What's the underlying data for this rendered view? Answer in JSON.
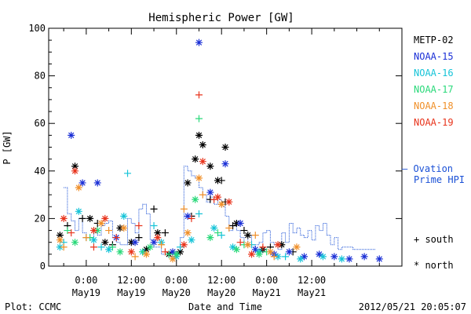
{
  "chart_data": {
    "type": "scatter",
    "title": "Hemispheric Power [GW]",
    "ylabel": "P [GW]",
    "xlabel": "Date and Time",
    "ylim": [
      0,
      100
    ],
    "y_ticks": [
      "0",
      "20",
      "40",
      "60",
      "80",
      "100"
    ],
    "x_range_hours": [
      -10,
      84
    ],
    "x_ticks": [
      {
        "hour": 0,
        "time": "0:00",
        "date": "May19"
      },
      {
        "hour": 12,
        "time": "12:00",
        "date": "May19"
      },
      {
        "hour": 24,
        "time": "0:00",
        "date": "May20"
      },
      {
        "hour": 36,
        "time": "12:00",
        "date": "May20"
      },
      {
        "hour": 48,
        "time": "0:00",
        "date": "May21"
      },
      {
        "hour": 60,
        "time": "12:00",
        "date": "May21"
      }
    ],
    "legend": {
      "satellites": [
        {
          "name": "METP-02",
          "color": "#000000"
        },
        {
          "name": "NOAA-15",
          "color": "#1a2fd6"
        },
        {
          "name": "NOAA-16",
          "color": "#17c4d8"
        },
        {
          "name": "NOAA-17",
          "color": "#2ad97a"
        },
        {
          "name": "NOAA-18",
          "color": "#f0902a"
        },
        {
          "name": "NOAA-19",
          "color": "#e8341c"
        }
      ],
      "ovation_label_1": "— Ovation",
      "ovation_label_2": "Prime HPI",
      "ovation_color": "#1a50d6",
      "south_label": "+ south",
      "north_label": "* north"
    },
    "ovation_hpi": {
      "x": [
        -6,
        -5,
        -4,
        -3,
        -2,
        -1,
        0,
        1,
        2,
        3,
        4,
        5,
        6,
        7,
        8,
        9,
        10,
        11,
        12,
        13,
        14,
        15,
        16,
        17,
        18,
        19,
        20,
        21,
        22,
        23,
        24,
        25,
        26,
        27,
        28,
        29,
        30,
        31,
        32,
        33,
        34,
        35,
        36,
        37,
        38,
        39,
        40,
        41,
        42,
        43,
        44,
        45,
        46,
        47,
        48,
        49,
        50,
        51,
        52,
        53,
        54,
        55,
        56,
        57,
        58,
        59,
        60,
        61,
        62,
        63,
        64,
        65,
        66,
        67,
        68,
        69,
        70,
        71,
        72,
        73,
        74,
        75,
        76
      ],
      "y": [
        33,
        22,
        19,
        15,
        20,
        14,
        12,
        12,
        14,
        13,
        17,
        18,
        19,
        12,
        10,
        9,
        9,
        20,
        18,
        14,
        24,
        26,
        22,
        11,
        8,
        8,
        5,
        5,
        4,
        4,
        6,
        12,
        42,
        40,
        38,
        37,
        33,
        30,
        27,
        29,
        26,
        28,
        25,
        21,
        15,
        18,
        15,
        12,
        9,
        13,
        8,
        9,
        10,
        14,
        15,
        10,
        9,
        7,
        14,
        10,
        18,
        14,
        16,
        13,
        12,
        15,
        11,
        17,
        15,
        18,
        13,
        9,
        12,
        7,
        8,
        8,
        8,
        7,
        7,
        7,
        7,
        7,
        7
      ]
    },
    "series": [
      {
        "name": "METP-02",
        "hemisphere": "south",
        "x": [
          -5,
          -1,
          3,
          7,
          14,
          18,
          21,
          28,
          33,
          36,
          37,
          39,
          42,
          49,
          55
        ],
        "y": [
          17,
          20,
          18,
          9,
          12,
          24,
          14,
          21,
          28,
          36,
          27,
          17,
          15,
          8,
          6
        ]
      },
      {
        "name": "METP-02",
        "hemisphere": "north",
        "x": [
          -7,
          -3,
          1,
          5,
          9,
          12,
          16,
          19,
          22,
          25,
          27,
          29,
          30,
          31,
          33,
          35,
          37,
          40,
          43,
          47,
          52
        ],
        "y": [
          13,
          42,
          20,
          10,
          16,
          10,
          7,
          14,
          5,
          6,
          35,
          45,
          55,
          51,
          42,
          36,
          50,
          18,
          13,
          7,
          9
        ]
      },
      {
        "name": "NOAA-15",
        "hemisphere": "north",
        "x": [
          -4,
          -1,
          3,
          8,
          13,
          18,
          23,
          27,
          30,
          33,
          37,
          41,
          45,
          50,
          54,
          58,
          62,
          66,
          70,
          74,
          78
        ],
        "y": [
          55,
          35,
          35,
          12,
          10,
          10,
          6,
          21,
          94,
          31,
          43,
          18,
          7,
          5,
          6,
          4,
          5,
          4,
          3,
          4,
          3
        ]
      },
      {
        "name": "NOAA-16",
        "hemisphere": "south",
        "x": [
          -6,
          0,
          4,
          11,
          18,
          25,
          30,
          36,
          44,
          53
        ],
        "y": [
          10,
          12,
          8,
          39,
          17,
          8,
          22,
          13,
          9,
          4
        ]
      },
      {
        "name": "NOAA-16",
        "hemisphere": "north",
        "x": [
          -7,
          -2,
          2,
          6,
          10,
          15,
          20,
          24,
          28,
          34,
          39,
          46,
          51,
          57,
          63,
          68
        ],
        "y": [
          8,
          23,
          11,
          7,
          21,
          6,
          10,
          4,
          11,
          16,
          8,
          6,
          4,
          3,
          4,
          3
        ]
      },
      {
        "name": "NOAA-17",
        "hemisphere": "south",
        "x": [
          -5,
          1,
          7,
          15,
          22,
          30,
          35,
          42,
          48
        ],
        "y": [
          15,
          12,
          8,
          6,
          5,
          62,
          14,
          9,
          6
        ]
      },
      {
        "name": "NOAA-17",
        "hemisphere": "north",
        "x": [
          -3,
          3,
          9,
          17,
          24,
          29,
          33,
          40,
          46
        ],
        "y": [
          10,
          15,
          6,
          8,
          5,
          28,
          12,
          7,
          5
        ]
      },
      {
        "name": "NOAA-18",
        "hemisphere": "south",
        "x": [
          -6,
          0,
          6,
          13,
          20,
          26,
          31,
          38,
          45,
          50
        ],
        "y": [
          8,
          12,
          15,
          4,
          9,
          24,
          30,
          16,
          13,
          4
        ]
      },
      {
        "name": "NOAA-18",
        "hemisphere": "north",
        "x": [
          -7,
          -2,
          4,
          10,
          16,
          23,
          27,
          30,
          36,
          43,
          49,
          56
        ],
        "y": [
          11,
          33,
          18,
          16,
          5,
          3,
          14,
          37,
          26,
          9,
          6,
          8
        ]
      },
      {
        "name": "NOAA-19",
        "hemisphere": "south",
        "x": [
          -4,
          2,
          8,
          14,
          21,
          28,
          30,
          34,
          41,
          47
        ],
        "y": [
          14,
          8,
          12,
          17,
          6,
          20,
          72,
          28,
          10,
          8
        ]
      },
      {
        "name": "NOAA-19",
        "hemisphere": "north",
        "x": [
          -6,
          -3,
          2,
          5,
          12,
          19,
          26,
          31,
          35,
          38,
          44,
          51
        ],
        "y": [
          20,
          40,
          15,
          20,
          6,
          12,
          9,
          44,
          29,
          27,
          5,
          9
        ]
      }
    ]
  },
  "footer": {
    "plot_credit": "Plot: CCMC",
    "timestamp": "2012/05/21 20:05:07"
  }
}
